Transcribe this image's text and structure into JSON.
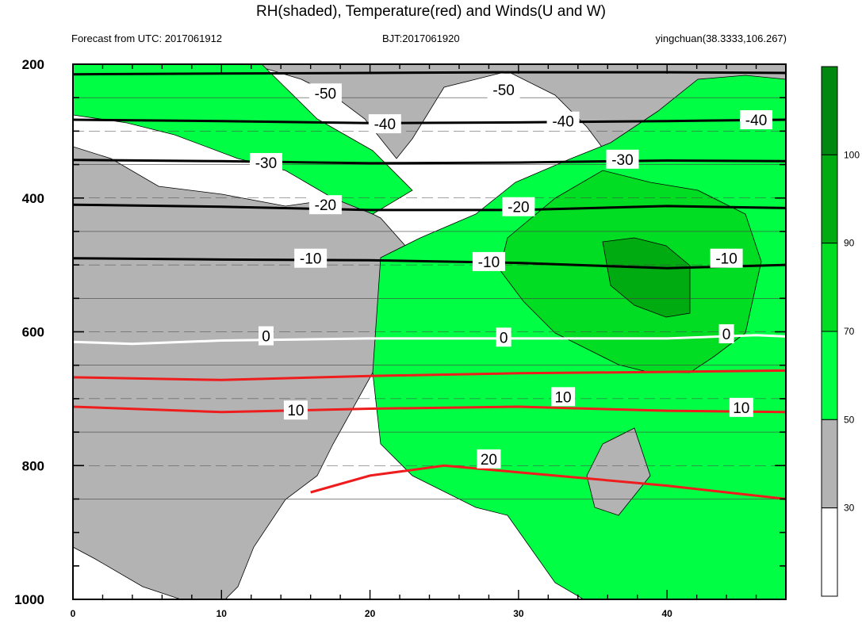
{
  "title": "RH(shaded), Temperature(red) and Winds(U and W)",
  "subtitle_left": "Forecast from UTC: 2017061912",
  "subtitle_center": "BJT:2017061920",
  "subtitle_right": "yingchuan(38.3333,106.267)",
  "colors": {
    "rh_30_50": "#b3b3b3",
    "rh_50_70": "#00ff44",
    "rh_70_90": "#00dd22",
    "rh_90_100": "#00aa11",
    "rh_100": "#008811",
    "warm_isotherm": "#ee1c1c",
    "cold_isotherm": "#000000",
    "zero_isotherm": "#ffffff"
  },
  "chart_data": {
    "type": "contour",
    "title": "RH(shaded), Temperature(red) and Winds(U and W)",
    "xlabel": "",
    "ylabel": "",
    "xlim": [
      0,
      48
    ],
    "ylim": [
      1000,
      200
    ],
    "x_ticks": [
      0,
      10,
      20,
      30,
      40
    ],
    "y_ticks": [
      200,
      400,
      600,
      800,
      1000
    ],
    "y_reversed": true,
    "colorbar": {
      "levels": [
        30,
        50,
        70,
        90,
        100
      ],
      "colors": [
        "#ffffff",
        "#b3b3b3",
        "#00ff44",
        "#00dd22",
        "#00aa11",
        "#008811"
      ]
    },
    "temperature_contours": [
      {
        "value": -50,
        "label": "-50",
        "points": [
          [
            0,
            215
          ],
          [
            10,
            214
          ],
          [
            20,
            213
          ],
          [
            30,
            212
          ],
          [
            40,
            212
          ],
          [
            48,
            213
          ]
        ]
      },
      {
        "value": -40,
        "label": "-40",
        "points": [
          [
            0,
            283
          ],
          [
            10,
            285
          ],
          [
            20,
            288
          ],
          [
            30,
            287
          ],
          [
            40,
            285
          ],
          [
            48,
            283
          ]
        ]
      },
      {
        "value": -30,
        "label": "-30",
        "points": [
          [
            0,
            343
          ],
          [
            10,
            345
          ],
          [
            20,
            348
          ],
          [
            30,
            347
          ],
          [
            40,
            344
          ],
          [
            48,
            345
          ]
        ]
      },
      {
        "value": -20,
        "label": "-20",
        "points": [
          [
            0,
            410
          ],
          [
            10,
            413
          ],
          [
            20,
            418
          ],
          [
            30,
            418
          ],
          [
            40,
            412
          ],
          [
            48,
            415
          ]
        ]
      },
      {
        "value": -10,
        "label": "-10",
        "points": [
          [
            0,
            490
          ],
          [
            10,
            492
          ],
          [
            20,
            493
          ],
          [
            30,
            497
          ],
          [
            40,
            505
          ],
          [
            48,
            500
          ]
        ]
      },
      {
        "value": 0,
        "label": "0",
        "points": [
          [
            0,
            615
          ],
          [
            4,
            618
          ],
          [
            10,
            613
          ],
          [
            20,
            610
          ],
          [
            30,
            610
          ],
          [
            40,
            610
          ],
          [
            46,
            605
          ],
          [
            48,
            607
          ]
        ]
      },
      {
        "value": 10,
        "label": "10",
        "points": [
          [
            0,
            668
          ],
          [
            10,
            672
          ],
          [
            20,
            666
          ],
          [
            30,
            662
          ],
          [
            40,
            660
          ],
          [
            48,
            658
          ]
        ]
      },
      {
        "value": 10,
        "label": "10",
        "points": [
          [
            0,
            712
          ],
          [
            10,
            720
          ],
          [
            20,
            715
          ],
          [
            30,
            712
          ],
          [
            40,
            718
          ],
          [
            48,
            720
          ]
        ]
      },
      {
        "value": 20,
        "label": "20",
        "points": [
          [
            16,
            840
          ],
          [
            20,
            815
          ],
          [
            25,
            800
          ],
          [
            30,
            810
          ],
          [
            40,
            830
          ],
          [
            48,
            850
          ]
        ]
      }
    ],
    "contour_labels": [
      {
        "text": "-50",
        "x": 17,
        "y": 243
      },
      {
        "text": "-50",
        "x": 29,
        "y": 238
      },
      {
        "text": "-40",
        "x": 21,
        "y": 289
      },
      {
        "text": "-40",
        "x": 33,
        "y": 285
      },
      {
        "text": "-40",
        "x": 46,
        "y": 283
      },
      {
        "text": "-30",
        "x": 13,
        "y": 347
      },
      {
        "text": "-30",
        "x": 37,
        "y": 342
      },
      {
        "text": "-20",
        "x": 17,
        "y": 410
      },
      {
        "text": "-20",
        "x": 30,
        "y": 413
      },
      {
        "text": "-10",
        "x": 16,
        "y": 490
      },
      {
        "text": "-10",
        "x": 28,
        "y": 495
      },
      {
        "text": "-10",
        "x": 44,
        "y": 490
      },
      {
        "text": "0",
        "x": 13,
        "y": 606
      },
      {
        "text": "0",
        "x": 29,
        "y": 608
      },
      {
        "text": "0",
        "x": 44,
        "y": 603
      },
      {
        "text": "10",
        "x": 15,
        "y": 717
      },
      {
        "text": "10",
        "x": 33,
        "y": 697
      },
      {
        "text": "10",
        "x": 45,
        "y": 713
      },
      {
        "text": "20",
        "x": 28,
        "y": 790
      }
    ]
  }
}
